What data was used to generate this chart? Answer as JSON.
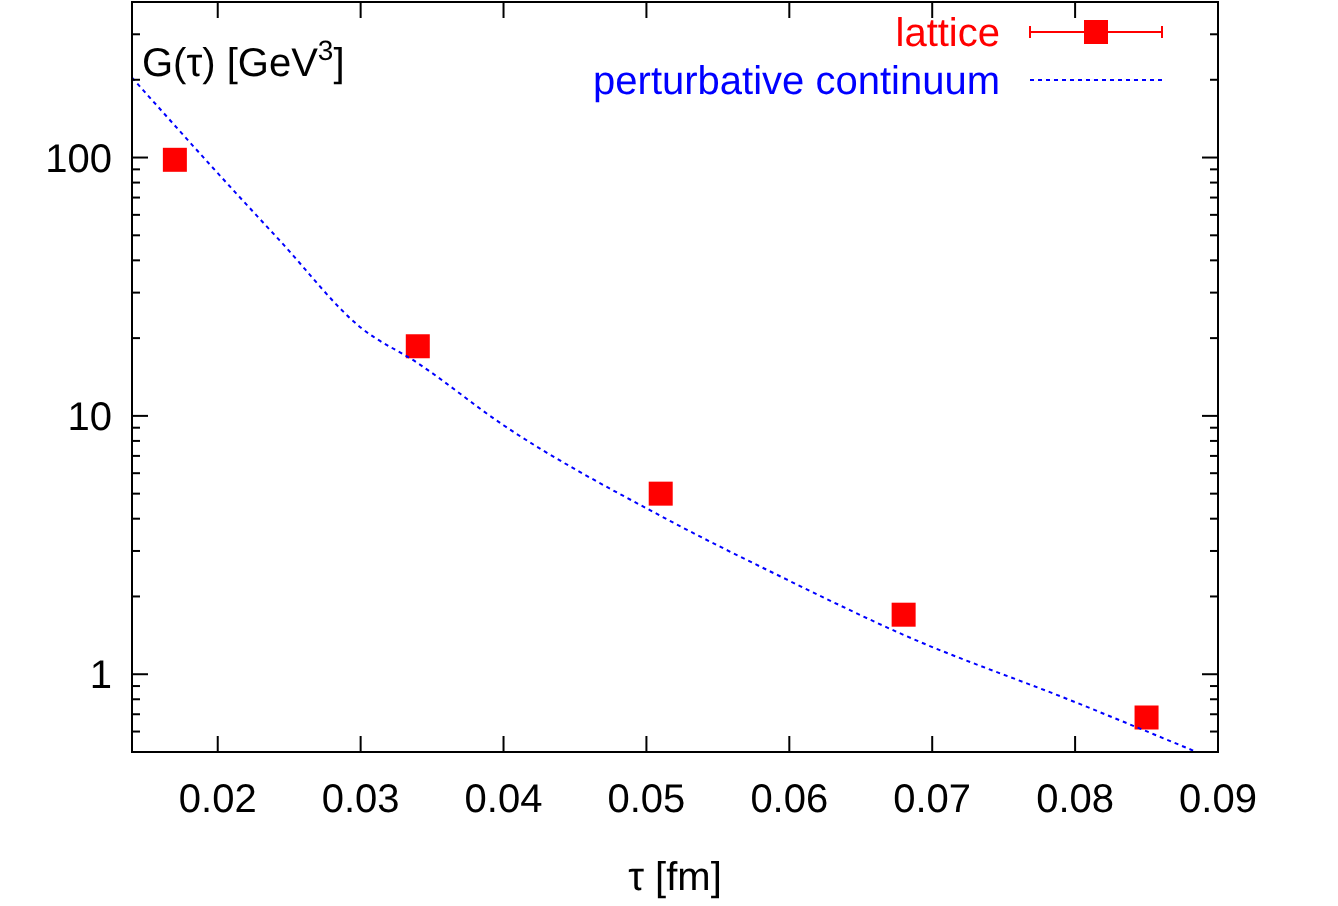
{
  "chart_data": {
    "type": "scatter",
    "xlabel": "τ [fm]",
    "ylabel": "G(τ) [GeV$^{3}$]",
    "log": "y",
    "legend": "top right",
    "xlim": [
      0.014,
      0.09
    ],
    "xticks": [
      0.02,
      0.03,
      0.04,
      0.05,
      0.06,
      0.07,
      0.08,
      0.09
    ],
    "ylim": [
      0.5,
      400
    ],
    "yticks": [
      {
        "value": 0.5,
        "label": null
      },
      {
        "value": 0.6,
        "label": null
      },
      {
        "value": 0.7,
        "label": null
      },
      {
        "value": 0.8,
        "label": null
      },
      {
        "value": 0.9,
        "label": null
      },
      1,
      {
        "value": 2,
        "label": null
      },
      {
        "value": 3,
        "label": null
      },
      {
        "value": 4,
        "label": null
      },
      {
        "value": 5,
        "label": null
      },
      {
        "value": 6,
        "label": null
      },
      {
        "value": 7,
        "label": null
      },
      {
        "value": 8,
        "label": null
      },
      {
        "value": 9,
        "label": null
      },
      10,
      {
        "value": 20,
        "label": null
      },
      {
        "value": 30,
        "label": null
      },
      {
        "value": 40,
        "label": null
      },
      {
        "value": 50,
        "label": null
      },
      {
        "value": 60,
        "label": null
      },
      {
        "value": 70,
        "label": null
      },
      {
        "value": 80,
        "label": null
      },
      {
        "value": 90,
        "label": null
      },
      100,
      {
        "value": 200,
        "label": null
      },
      {
        "value": 300,
        "label": null
      },
      {
        "value": 400,
        "label": null
      }
    ],
    "series": [
      {
        "name": "lattice",
        "color": "#ff0000",
        "marker": "square",
        "x": [
          0.017,
          0.034,
          0.051,
          0.068,
          0.085
        ],
        "values": [
          98,
          18.6,
          5.0,
          1.7,
          0.68
        ]
      },
      {
        "name": "perturbative continuum",
        "type": "line",
        "color": "#0000ff",
        "line_style": "dotted",
        "marker": "none",
        "x": [
          0.014,
          0.02,
          0.0243,
          0.03,
          0.034,
          0.04,
          0.051,
          0.06,
          0.068,
          0.08,
          0.0885
        ],
        "values": [
          204,
          87,
          48,
          22,
          16,
          9.2,
          4.1,
          2.3,
          1.42,
          0.78,
          0.5
        ]
      }
    ]
  }
}
